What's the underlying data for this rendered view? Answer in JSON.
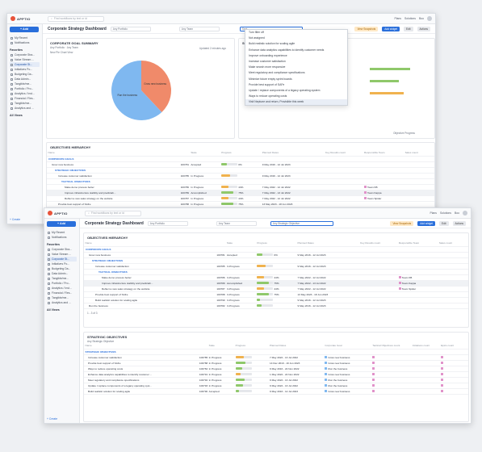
{
  "app": {
    "logo": "APPTIO",
    "search_placeholder": "Find workflows by text or id",
    "links": [
      "Plans",
      "Solutions",
      "Boo"
    ]
  },
  "sidebar": {
    "add": "+ Add",
    "items": [
      "My Recent",
      "Notifications"
    ],
    "fav_header": "Favorites",
    "favs": [
      "Corporate Stra...",
      "Value Stream ...",
      "Corporate St...",
      "Initiatives Po...",
      "Budgeting Da...",
      "Data Admin...",
      "Tangible/me...",
      "Portfolio / Pro...",
      "Analytics / Inst...",
      "Financial / Res...",
      "Tangible/me...",
      "Analytics and ..."
    ],
    "all_views": "All Views",
    "create": "+ Create"
  },
  "header": {
    "title": "Corporate Strategy Dashboard",
    "portfolio": "Any Portfolio",
    "team": "Any Team",
    "filter": "Any Strategic Objective",
    "btn_all": "View Snapshots",
    "btn_add": "Add widget",
    "btn_edit": "Edit",
    "btn_actions": "Actions"
  },
  "goal_panel": {
    "title": "CORPORATE GOAL SUMMARY",
    "sub": "Any Portfolio · Any Team",
    "caption": "Updated 2 minutes ago",
    "legend": "New Pie Chart View",
    "slices": [
      {
        "label": "Grow new business",
        "value": 38,
        "color": "#f08a6a"
      },
      {
        "label": "Run the business",
        "value": 62,
        "color": "#7fb8f0"
      }
    ]
  },
  "dropdown": {
    "items": [
      "Turn filter off",
      "Not assigned",
      "Build realistic solution for scaling agile",
      "Enhance data analytics capabilities to identify customer needs",
      "Improve onboarding experience",
      "Increase customer satisfaction",
      "Make search more responsive",
      "Meet regulatory and compliance specifications",
      "Minimize future empty sprint boards",
      "Provide best support of SAFe",
      "Update / replace components of a legacy operating system",
      "Ways to reduce operating costs",
      "Visit Neptune and return, Provisible this week"
    ]
  },
  "side_panel": {
    "title": "Strategic Objectives",
    "axis": "Objective Progress"
  },
  "hier": {
    "title": "OBJECTIVES HIERARCHY",
    "cols": [
      "Name",
      "",
      "State",
      "Progress",
      "Planned Dates",
      "Key Results count",
      "Responsible Team",
      "Sales count"
    ],
    "rows": [
      {
        "name": "CORPORATE GOALS",
        "grp": true
      },
      {
        "name": "Grow new business",
        "id": "100781",
        "state": "Accepted",
        "pct": "0%",
        "dates": "9 May 2016 - 12 Jul 2023",
        "kr": "",
        "team": "",
        "color": "#8fc86a",
        "fill": 0.35
      },
      {
        "name": "STRATEGIC OBJECTIVES",
        "grp": true
      },
      {
        "name": "Increase customer satisfaction",
        "id": "100785",
        "state": "In Progress",
        "pct": "",
        "dates": "9 May 2016 - 12 Jul 2023",
        "kr": "",
        "team": "",
        "color": "#f0b24e",
        "fill": 0.55
      },
      {
        "name": "TACTICAL OBJECTIVES",
        "grp": true
      },
      {
        "name": "Make demo process better",
        "id": "100786",
        "state": "In Progress",
        "pct": "44%",
        "dates": "7 May 2022 - 12 Jul 2022",
        "kr": "",
        "team": "Team KB",
        "color": "#f0b24e",
        "fill": 0.44
      },
      {
        "name": "Improve infrastructure stability and predictab...",
        "id": "100789",
        "state": "Accomplished",
        "pct": "75%",
        "dates": "7 May 2022 - 13 Jul 2022",
        "kr": "",
        "team": "Team Kappa",
        "color": "#8fc86a",
        "fill": 0.75,
        "hl": true
      },
      {
        "name": "Reflect a new sales strategy on the website",
        "id": "100787",
        "state": "In Progress",
        "pct": "44%",
        "dates": "7 May 2022 - 12 Jul 2022",
        "kr": "",
        "team": "Team Spider",
        "color": "#f0b24e",
        "fill": 0.44
      },
      {
        "name": "Provide best support of SAFe",
        "id": "100788",
        "state": "In Progress",
        "pct": "75%",
        "dates": "13 May 2023 - 18 Jun 2023",
        "kr": "",
        "team": "",
        "color": "#8fc86a",
        "fill": 0.75
      },
      {
        "name": "Build realistic solution for scaling agile",
        "id": "100790",
        "state": "In Progress",
        "pct": "",
        "dates": "9 May 2016 - 12 Jul 2023",
        "kr": "",
        "team": "",
        "color": "#8fc86a",
        "fill": 0.2
      },
      {
        "name": "Run the business",
        "id": "100782",
        "state": "In Progress",
        "pct": "",
        "dates": "9 May 2016 - 12 Jul 2023",
        "kr": "",
        "team": "",
        "color": "#8fc86a",
        "fill": 0.3
      }
    ],
    "pager": "1 - 3 of 3"
  },
  "strat": {
    "title": "STRATEGIC OBJECTIVES",
    "filter": "Any Strategic Objective",
    "cols": [
      "Name",
      "",
      "State",
      "Progress",
      "Planned Dates",
      "Corporate Goal",
      "Tactical Objectives count",
      "Initiatives count",
      "Epics count"
    ],
    "group": "STRATEGIC OBJECTIVES",
    "rows": [
      {
        "name": "Increase customer satisfaction",
        "id": "100785",
        "state": "In Progress",
        "dates": "7 May 2022 - 13 Jul 2022",
        "goal": "Grow new business",
        "fill": 0.5,
        "color": "#f0b24e"
      },
      {
        "name": "Provide best support of SAFe",
        "id": "100788",
        "state": "In Progress",
        "dates": "14 Dec 2019 - 19 Jun 2023",
        "goal": "Grow new business",
        "fill": 0.6,
        "color": "#8fc86a"
      },
      {
        "name": "Ways to reduce operating costs",
        "id": "100784",
        "state": "In Progress",
        "dates": "9 May 2016 - 22 Nov 2022",
        "goal": "Run the business",
        "fill": 0.4,
        "color": "#8fc86a"
      },
      {
        "name": "Enhance data analytics capabilities to identify customer ...",
        "id": "100791",
        "state": "In Progress",
        "dates": "1 May 2022 - 22 Nov 2022",
        "goal": "Grow new business",
        "fill": 0.3,
        "color": "#f0b24e"
      },
      {
        "name": "Meet regulatory and compliance specifications",
        "id": "100792",
        "state": "In Progress",
        "dates": "9 May 2022 - 13 Jul 2022",
        "goal": "Run the business",
        "fill": 0.55,
        "color": "#8fc86a"
      },
      {
        "name": "Update / replace components of a legacy operating syst...",
        "id": "100793",
        "state": "In Progress",
        "dates": "9 May 2022 - 13 Jul 2022",
        "goal": "Run the business",
        "fill": 0.45,
        "color": "#8fc86a"
      },
      {
        "name": "Build realistic solution for scaling agile",
        "id": "100790",
        "state": "Accepted",
        "dates": "9 May 2016 - 12 Jul 2023",
        "goal": "Grow new business",
        "fill": 0.2,
        "color": "#8fc86a"
      }
    ]
  }
}
